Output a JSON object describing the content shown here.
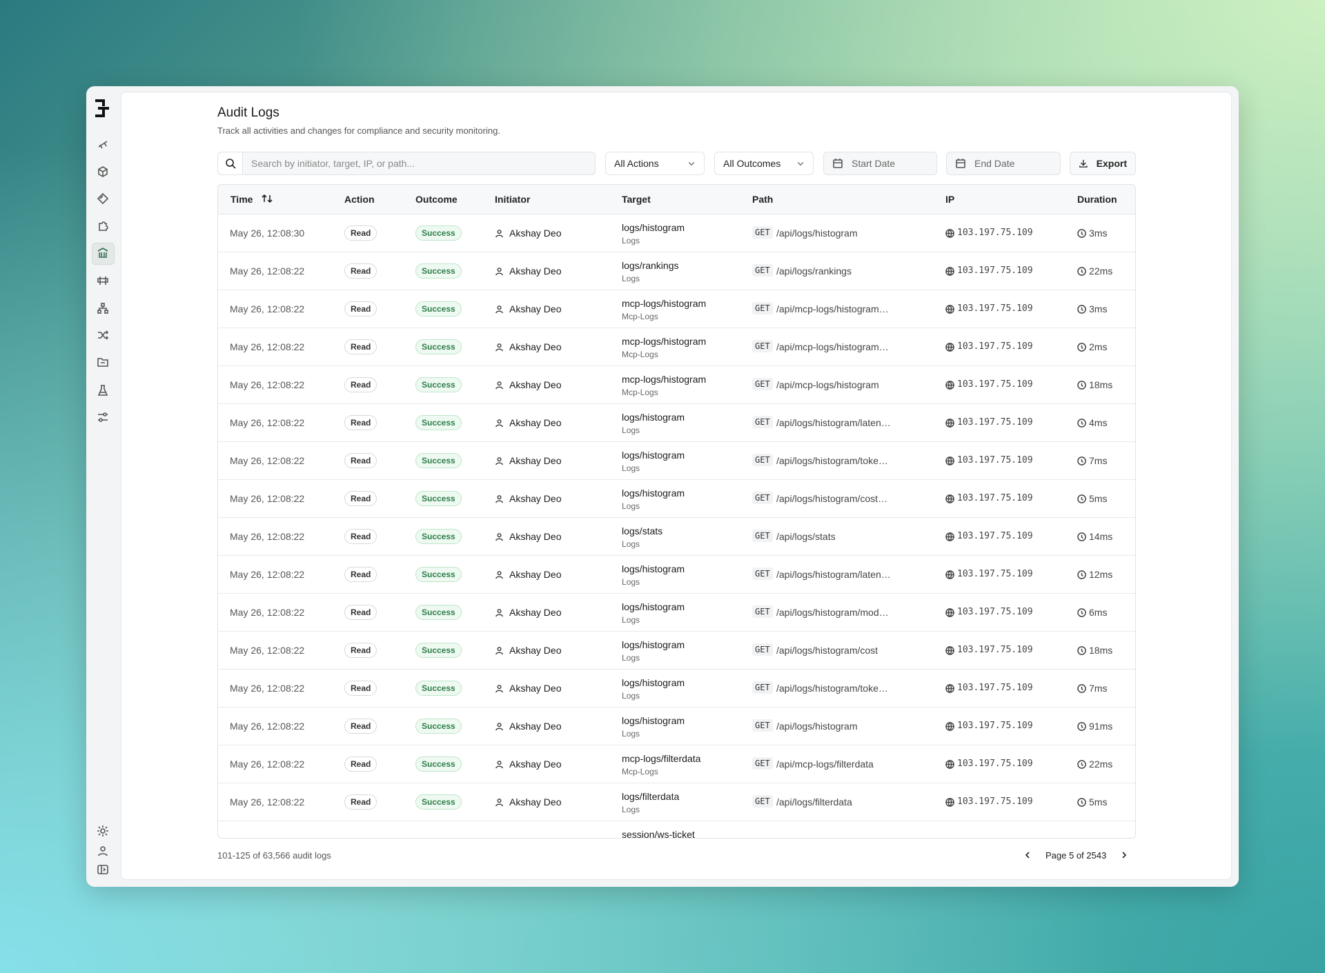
{
  "header": {
    "title": "Audit Logs",
    "subtitle": "Track all activities and changes for compliance and security monitoring."
  },
  "filters": {
    "search_placeholder": "Search by initiator, target, IP, or path...",
    "actions": "All Actions",
    "outcomes": "All Outcomes",
    "start_date": "Start Date",
    "end_date": "End Date",
    "export": "Export"
  },
  "table": {
    "columns": [
      "Time",
      "Action",
      "Outcome",
      "Initiator",
      "Target",
      "Path",
      "IP",
      "Duration"
    ],
    "rows": [
      {
        "time": "May 26, 12:08:30",
        "action": "Read",
        "outcome": "Success",
        "initiator": "Akshay Deo",
        "target": "logs/histogram",
        "target_group": "Logs",
        "method": "GET",
        "path": "/api/logs/histogram",
        "ip": "103.197.75.109",
        "duration": "3ms"
      },
      {
        "time": "May 26, 12:08:22",
        "action": "Read",
        "outcome": "Success",
        "initiator": "Akshay Deo",
        "target": "logs/rankings",
        "target_group": "Logs",
        "method": "GET",
        "path": "/api/logs/rankings",
        "ip": "103.197.75.109",
        "duration": "22ms"
      },
      {
        "time": "May 26, 12:08:22",
        "action": "Read",
        "outcome": "Success",
        "initiator": "Akshay Deo",
        "target": "mcp-logs/histogram",
        "target_group": "Mcp-Logs",
        "method": "GET",
        "path": "/api/mcp-logs/histogram…",
        "ip": "103.197.75.109",
        "duration": "3ms"
      },
      {
        "time": "May 26, 12:08:22",
        "action": "Read",
        "outcome": "Success",
        "initiator": "Akshay Deo",
        "target": "mcp-logs/histogram",
        "target_group": "Mcp-Logs",
        "method": "GET",
        "path": "/api/mcp-logs/histogram…",
        "ip": "103.197.75.109",
        "duration": "2ms"
      },
      {
        "time": "May 26, 12:08:22",
        "action": "Read",
        "outcome": "Success",
        "initiator": "Akshay Deo",
        "target": "mcp-logs/histogram",
        "target_group": "Mcp-Logs",
        "method": "GET",
        "path": "/api/mcp-logs/histogram",
        "ip": "103.197.75.109",
        "duration": "18ms"
      },
      {
        "time": "May 26, 12:08:22",
        "action": "Read",
        "outcome": "Success",
        "initiator": "Akshay Deo",
        "target": "logs/histogram",
        "target_group": "Logs",
        "method": "GET",
        "path": "/api/logs/histogram/laten…",
        "ip": "103.197.75.109",
        "duration": "4ms"
      },
      {
        "time": "May 26, 12:08:22",
        "action": "Read",
        "outcome": "Success",
        "initiator": "Akshay Deo",
        "target": "logs/histogram",
        "target_group": "Logs",
        "method": "GET",
        "path": "/api/logs/histogram/toke…",
        "ip": "103.197.75.109",
        "duration": "7ms"
      },
      {
        "time": "May 26, 12:08:22",
        "action": "Read",
        "outcome": "Success",
        "initiator": "Akshay Deo",
        "target": "logs/histogram",
        "target_group": "Logs",
        "method": "GET",
        "path": "/api/logs/histogram/cost…",
        "ip": "103.197.75.109",
        "duration": "5ms"
      },
      {
        "time": "May 26, 12:08:22",
        "action": "Read",
        "outcome": "Success",
        "initiator": "Akshay Deo",
        "target": "logs/stats",
        "target_group": "Logs",
        "method": "GET",
        "path": "/api/logs/stats",
        "ip": "103.197.75.109",
        "duration": "14ms"
      },
      {
        "time": "May 26, 12:08:22",
        "action": "Read",
        "outcome": "Success",
        "initiator": "Akshay Deo",
        "target": "logs/histogram",
        "target_group": "Logs",
        "method": "GET",
        "path": "/api/logs/histogram/laten…",
        "ip": "103.197.75.109",
        "duration": "12ms"
      },
      {
        "time": "May 26, 12:08:22",
        "action": "Read",
        "outcome": "Success",
        "initiator": "Akshay Deo",
        "target": "logs/histogram",
        "target_group": "Logs",
        "method": "GET",
        "path": "/api/logs/histogram/mod…",
        "ip": "103.197.75.109",
        "duration": "6ms"
      },
      {
        "time": "May 26, 12:08:22",
        "action": "Read",
        "outcome": "Success",
        "initiator": "Akshay Deo",
        "target": "logs/histogram",
        "target_group": "Logs",
        "method": "GET",
        "path": "/api/logs/histogram/cost",
        "ip": "103.197.75.109",
        "duration": "18ms"
      },
      {
        "time": "May 26, 12:08:22",
        "action": "Read",
        "outcome": "Success",
        "initiator": "Akshay Deo",
        "target": "logs/histogram",
        "target_group": "Logs",
        "method": "GET",
        "path": "/api/logs/histogram/toke…",
        "ip": "103.197.75.109",
        "duration": "7ms"
      },
      {
        "time": "May 26, 12:08:22",
        "action": "Read",
        "outcome": "Success",
        "initiator": "Akshay Deo",
        "target": "logs/histogram",
        "target_group": "Logs",
        "method": "GET",
        "path": "/api/logs/histogram",
        "ip": "103.197.75.109",
        "duration": "91ms"
      },
      {
        "time": "May 26, 12:08:22",
        "action": "Read",
        "outcome": "Success",
        "initiator": "Akshay Deo",
        "target": "mcp-logs/filterdata",
        "target_group": "Mcp-Logs",
        "method": "GET",
        "path": "/api/mcp-logs/filterdata",
        "ip": "103.197.75.109",
        "duration": "22ms"
      },
      {
        "time": "May 26, 12:08:22",
        "action": "Read",
        "outcome": "Success",
        "initiator": "Akshay Deo",
        "target": "logs/filterdata",
        "target_group": "Logs",
        "method": "GET",
        "path": "/api/logs/filterdata",
        "ip": "103.197.75.109",
        "duration": "5ms"
      },
      {
        "target": "session/ws-ticket"
      }
    ]
  },
  "footer": {
    "summary": "101-125 of 63,566 audit logs",
    "page": "Page 5 of 2543"
  }
}
